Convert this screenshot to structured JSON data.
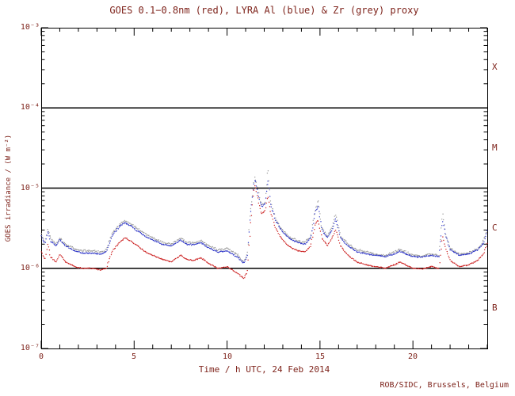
{
  "footer": "ROB/SIDC, Brussels, Belgium",
  "colors": {
    "text": "#7e231b",
    "axis": "#000000",
    "background": "#ffffff",
    "goes_red": "#cc2222",
    "lyra_al_blue": "#2d35c8",
    "lyra_zr_grey": "#9a9a9a"
  },
  "chart_data": {
    "type": "scatter",
    "title": "GOES 0.1−0.8nm (red), LYRA Al (blue) & Zr (grey) proxy",
    "xlabel": "Time / h UTC, 24 Feb 2014",
    "ylabel": "GOES irradiance / (W m⁻²)",
    "xlim": [
      0,
      24
    ],
    "ylim": [
      1e-07,
      0.001
    ],
    "yscale": "log",
    "grid": false,
    "legend": "encoded in title by colour",
    "xtick_labels": [
      "0",
      "5",
      "10",
      "15",
      "20"
    ],
    "xticks_major": [
      0,
      5,
      10,
      15,
      20
    ],
    "xtick_minor_step": 1,
    "ytick_labels": [
      "10⁻³",
      "10⁻⁴",
      "10⁻⁵",
      "10⁻⁶",
      "10⁻⁷"
    ],
    "ytick_exps": [
      -3,
      -4,
      -5,
      -6,
      -7
    ],
    "flare_class_boundary_exps": [
      -4,
      -5,
      -6
    ],
    "class_labels": [
      "X",
      "M",
      "C",
      "B"
    ],
    "series": [
      {
        "name": "LYRA Zr proxy",
        "color": "#9a9a9a",
        "noise": 1.6,
        "points": [
          [
            0.0,
            2.7e-06
          ],
          [
            0.2,
            2.1e-06
          ],
          [
            0.35,
            3.1e-06
          ],
          [
            0.5,
            2.4e-06
          ],
          [
            0.8,
            2e-06
          ],
          [
            1.0,
            2.4e-06
          ],
          [
            1.3,
            2e-06
          ],
          [
            1.8,
            1.75e-06
          ],
          [
            2.2,
            1.65e-06
          ],
          [
            2.8,
            1.65e-06
          ],
          [
            3.2,
            1.6e-06
          ],
          [
            3.5,
            1.7e-06
          ],
          [
            3.8,
            2.7e-06
          ],
          [
            4.2,
            3.5e-06
          ],
          [
            4.5,
            3.9e-06
          ],
          [
            4.8,
            3.6e-06
          ],
          [
            5.2,
            3.1e-06
          ],
          [
            5.6,
            2.7e-06
          ],
          [
            6.0,
            2.4e-06
          ],
          [
            6.5,
            2.1e-06
          ],
          [
            7.0,
            2e-06
          ],
          [
            7.5,
            2.4e-06
          ],
          [
            7.8,
            2.1e-06
          ],
          [
            8.2,
            2.05e-06
          ],
          [
            8.6,
            2.2e-06
          ],
          [
            9.0,
            1.9e-06
          ],
          [
            9.5,
            1.7e-06
          ],
          [
            10.0,
            1.75e-06
          ],
          [
            10.3,
            1.6e-06
          ],
          [
            10.6,
            1.45e-06
          ],
          [
            10.9,
            1.2e-06
          ],
          [
            11.1,
            1.5e-06
          ],
          [
            11.25,
            5e-06
          ],
          [
            11.4,
            1e-05
          ],
          [
            11.5,
            1.4e-05
          ],
          [
            11.65,
            9.5e-06
          ],
          [
            11.85,
            6.2e-06
          ],
          [
            12.05,
            6.8e-06
          ],
          [
            12.2,
            1.8e-05
          ],
          [
            12.35,
            6.6e-06
          ],
          [
            12.6,
            4.2e-06
          ],
          [
            12.9,
            3.2e-06
          ],
          [
            13.3,
            2.5e-06
          ],
          [
            13.8,
            2.2e-06
          ],
          [
            14.2,
            2.1e-06
          ],
          [
            14.5,
            2.5e-06
          ],
          [
            14.75,
            5.5e-06
          ],
          [
            14.9,
            7e-06
          ],
          [
            15.1,
            3.2e-06
          ],
          [
            15.4,
            2.5e-06
          ],
          [
            15.65,
            3.2e-06
          ],
          [
            15.85,
            4.8e-06
          ],
          [
            16.1,
            2.5e-06
          ],
          [
            16.5,
            2e-06
          ],
          [
            17.0,
            1.7e-06
          ],
          [
            17.5,
            1.6e-06
          ],
          [
            18.0,
            1.5e-06
          ],
          [
            18.5,
            1.45e-06
          ],
          [
            19.0,
            1.6e-06
          ],
          [
            19.3,
            1.7e-06
          ],
          [
            19.6,
            1.6e-06
          ],
          [
            20.0,
            1.45e-06
          ],
          [
            20.5,
            1.42e-06
          ],
          [
            21.0,
            1.5e-06
          ],
          [
            21.4,
            1.45e-06
          ],
          [
            21.6,
            5e-06
          ],
          [
            21.75,
            2.8e-06
          ],
          [
            22.0,
            1.8e-06
          ],
          [
            22.5,
            1.5e-06
          ],
          [
            23.0,
            1.55e-06
          ],
          [
            23.5,
            1.75e-06
          ],
          [
            23.8,
            2.2e-06
          ],
          [
            24.0,
            3.1e-06
          ]
        ]
      },
      {
        "name": "LYRA Al proxy",
        "color": "#2d35c8",
        "noise": 0.9,
        "points": [
          [
            0.0,
            2.5e-06
          ],
          [
            0.2,
            2e-06
          ],
          [
            0.35,
            2.9e-06
          ],
          [
            0.5,
            2.2e-06
          ],
          [
            0.8,
            1.9e-06
          ],
          [
            1.0,
            2.3e-06
          ],
          [
            1.3,
            1.9e-06
          ],
          [
            1.8,
            1.65e-06
          ],
          [
            2.2,
            1.55e-06
          ],
          [
            2.8,
            1.55e-06
          ],
          [
            3.2,
            1.5e-06
          ],
          [
            3.5,
            1.6e-06
          ],
          [
            3.8,
            2.5e-06
          ],
          [
            4.2,
            3.3e-06
          ],
          [
            4.5,
            3.7e-06
          ],
          [
            4.8,
            3.4e-06
          ],
          [
            5.2,
            2.9e-06
          ],
          [
            5.6,
            2.5e-06
          ],
          [
            6.0,
            2.25e-06
          ],
          [
            6.5,
            2e-06
          ],
          [
            7.0,
            1.9e-06
          ],
          [
            7.5,
            2.25e-06
          ],
          [
            7.8,
            2e-06
          ],
          [
            8.2,
            1.95e-06
          ],
          [
            8.6,
            2.1e-06
          ],
          [
            9.0,
            1.8e-06
          ],
          [
            9.5,
            1.6e-06
          ],
          [
            10.0,
            1.65e-06
          ],
          [
            10.3,
            1.5e-06
          ],
          [
            10.6,
            1.35e-06
          ],
          [
            10.9,
            1.15e-06
          ],
          [
            11.1,
            1.4e-06
          ],
          [
            11.25,
            4.5e-06
          ],
          [
            11.4,
            9.5e-06
          ],
          [
            11.5,
            1.3e-05
          ],
          [
            11.65,
            9e-06
          ],
          [
            11.85,
            5.8e-06
          ],
          [
            12.05,
            6.3e-06
          ],
          [
            12.2,
            1.3e-05
          ],
          [
            12.35,
            6.2e-06
          ],
          [
            12.6,
            4e-06
          ],
          [
            12.9,
            3e-06
          ],
          [
            13.3,
            2.4e-06
          ],
          [
            13.8,
            2.1e-06
          ],
          [
            14.2,
            2e-06
          ],
          [
            14.5,
            2.4e-06
          ],
          [
            14.75,
            5e-06
          ],
          [
            14.9,
            6e-06
          ],
          [
            15.1,
            3e-06
          ],
          [
            15.4,
            2.4e-06
          ],
          [
            15.65,
            3e-06
          ],
          [
            15.85,
            4.2e-06
          ],
          [
            16.1,
            2.4e-06
          ],
          [
            16.5,
            1.9e-06
          ],
          [
            17.0,
            1.6e-06
          ],
          [
            17.5,
            1.5e-06
          ],
          [
            18.0,
            1.45e-06
          ],
          [
            18.5,
            1.4e-06
          ],
          [
            19.0,
            1.5e-06
          ],
          [
            19.3,
            1.65e-06
          ],
          [
            19.6,
            1.5e-06
          ],
          [
            20.0,
            1.4e-06
          ],
          [
            20.5,
            1.38e-06
          ],
          [
            21.0,
            1.45e-06
          ],
          [
            21.4,
            1.4e-06
          ],
          [
            21.6,
            4e-06
          ],
          [
            21.75,
            2.6e-06
          ],
          [
            22.0,
            1.7e-06
          ],
          [
            22.5,
            1.45e-06
          ],
          [
            23.0,
            1.5e-06
          ],
          [
            23.5,
            1.7e-06
          ],
          [
            23.8,
            2.1e-06
          ],
          [
            24.0,
            2.9e-06
          ]
        ]
      },
      {
        "name": "GOES 0.1-0.8nm",
        "color": "#cc2222",
        "noise": 0.7,
        "points": [
          [
            0.0,
            1.6e-06
          ],
          [
            0.2,
            1.3e-06
          ],
          [
            0.35,
            2e-06
          ],
          [
            0.5,
            1.4e-06
          ],
          [
            0.8,
            1.2e-06
          ],
          [
            1.0,
            1.5e-06
          ],
          [
            1.3,
            1.2e-06
          ],
          [
            1.8,
            1.05e-06
          ],
          [
            2.2,
            1e-06
          ],
          [
            2.8,
            1e-06
          ],
          [
            3.2,
            9.5e-07
          ],
          [
            3.5,
            1e-06
          ],
          [
            3.8,
            1.6e-06
          ],
          [
            4.2,
            2.1e-06
          ],
          [
            4.5,
            2.4e-06
          ],
          [
            4.8,
            2.2e-06
          ],
          [
            5.2,
            1.9e-06
          ],
          [
            5.6,
            1.6e-06
          ],
          [
            6.0,
            1.45e-06
          ],
          [
            6.5,
            1.3e-06
          ],
          [
            7.0,
            1.2e-06
          ],
          [
            7.5,
            1.45e-06
          ],
          [
            7.8,
            1.3e-06
          ],
          [
            8.2,
            1.25e-06
          ],
          [
            8.6,
            1.35e-06
          ],
          [
            9.0,
            1.15e-06
          ],
          [
            9.5,
            1e-06
          ],
          [
            10.0,
            1.05e-06
          ],
          [
            10.3,
            9.5e-07
          ],
          [
            10.6,
            8.5e-07
          ],
          [
            10.9,
            7.5e-07
          ],
          [
            11.1,
            9e-07
          ],
          [
            11.25,
            3e-06
          ],
          [
            11.4,
            8e-06
          ],
          [
            11.5,
            1.1e-05
          ],
          [
            11.65,
            7.5e-06
          ],
          [
            11.85,
            4.8e-06
          ],
          [
            12.05,
            5.2e-06
          ],
          [
            12.2,
            8e-06
          ],
          [
            12.35,
            5e-06
          ],
          [
            12.6,
            3.2e-06
          ],
          [
            12.9,
            2.4e-06
          ],
          [
            13.3,
            1.9e-06
          ],
          [
            13.8,
            1.65e-06
          ],
          [
            14.2,
            1.6e-06
          ],
          [
            14.5,
            1.9e-06
          ],
          [
            14.75,
            3.6e-06
          ],
          [
            14.9,
            4e-06
          ],
          [
            15.1,
            2.4e-06
          ],
          [
            15.4,
            1.9e-06
          ],
          [
            15.65,
            2.4e-06
          ],
          [
            15.85,
            3e-06
          ],
          [
            16.1,
            1.9e-06
          ],
          [
            16.5,
            1.45e-06
          ],
          [
            17.0,
            1.2e-06
          ],
          [
            17.5,
            1.1e-06
          ],
          [
            18.0,
            1.05e-06
          ],
          [
            18.5,
            1e-06
          ],
          [
            19.0,
            1.1e-06
          ],
          [
            19.3,
            1.2e-06
          ],
          [
            19.6,
            1.1e-06
          ],
          [
            20.0,
            1e-06
          ],
          [
            20.5,
            9.8e-07
          ],
          [
            21.0,
            1.05e-06
          ],
          [
            21.4,
            1e-06
          ],
          [
            21.6,
            2.5e-06
          ],
          [
            21.75,
            1.8e-06
          ],
          [
            22.0,
            1.25e-06
          ],
          [
            22.5,
            1.05e-06
          ],
          [
            23.0,
            1.1e-06
          ],
          [
            23.5,
            1.25e-06
          ],
          [
            23.8,
            1.5e-06
          ],
          [
            24.0,
            2e-06
          ]
        ]
      }
    ]
  }
}
